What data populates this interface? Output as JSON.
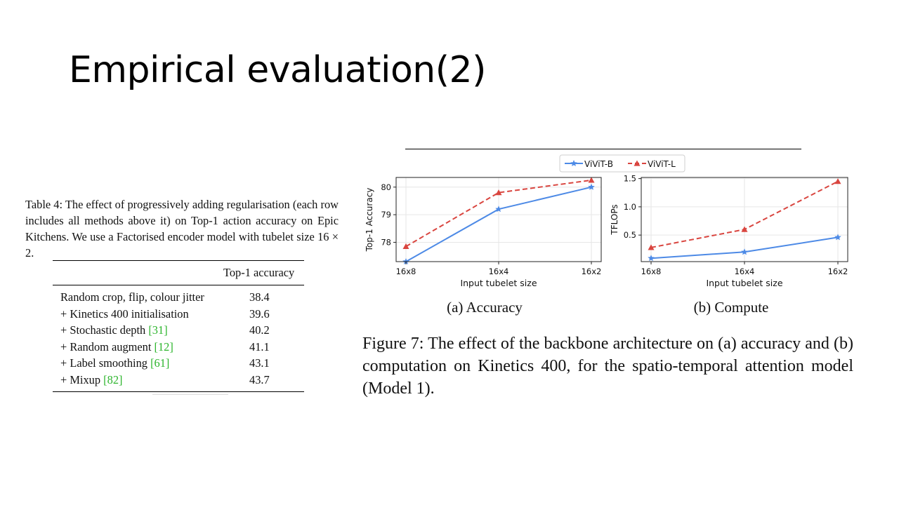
{
  "slide": {
    "title": "Empirical evaluation(2)"
  },
  "table4": {
    "caption_prefix": "Table 4: The effect of progressively adding regularisation (each row includes all methods above it) on Top-1 action accuracy on Epic Kitchens. We use a Factorised encoder model with tubelet size ",
    "caption_size": "16 × 2",
    "caption_end": ".",
    "column_header": "Top-1 accuracy",
    "rows": [
      {
        "method": "Random crop, flip, colour jitter",
        "cite": "",
        "value": "38.4"
      },
      {
        "method": "+ Kinetics 400 initialisation",
        "cite": "",
        "value": "39.6"
      },
      {
        "method": "+ Stochastic depth",
        "cite": "[31]",
        "value": "40.2"
      },
      {
        "method": "+ Random augment",
        "cite": "[12]",
        "value": "41.1"
      },
      {
        "method": "+ Label smoothing",
        "cite": "[61]",
        "value": "43.1"
      },
      {
        "method": "+ Mixup",
        "cite": "[82]",
        "value": "43.7"
      }
    ]
  },
  "figure7": {
    "legend": [
      {
        "name": "ViViT-B",
        "color": "#4d8ae6",
        "marker": "star-icon",
        "dash": "solid"
      },
      {
        "name": "ViViT-L",
        "color": "#d9453f",
        "marker": "triangle-icon",
        "dash": "dashed"
      }
    ],
    "caption": "Figure 7: The effect of the backbone architecture on (a) accuracy and (b) computation on Kinetics 400, for the spatio-temporal attention model (Model 1)."
  },
  "chart_data": [
    {
      "type": "line",
      "subtitle": "(a) Accuracy",
      "xlabel": "Input tubelet size",
      "ylabel": "Top-1 Accuracy",
      "categories": [
        "16x8",
        "16x4",
        "16x2"
      ],
      "yticks": [
        "78",
        "79",
        "80"
      ],
      "ylim": [
        77.3,
        80.35
      ],
      "grid": true,
      "legend": "top-center",
      "series": [
        {
          "name": "ViViT-B",
          "values": [
            77.3,
            79.2,
            80.0
          ]
        },
        {
          "name": "ViViT-L",
          "values": [
            77.85,
            79.8,
            80.25
          ]
        }
      ]
    },
    {
      "type": "line",
      "subtitle": "(b) Compute",
      "xlabel": "Input tubelet size",
      "ylabel": "TFLOPs",
      "categories": [
        "16x8",
        "16x4",
        "16x2"
      ],
      "yticks": [
        "0.5",
        "1.0",
        "1.5"
      ],
      "ylim": [
        0.03,
        1.52
      ],
      "grid": true,
      "legend": "top-center",
      "series": [
        {
          "name": "ViViT-B",
          "values": [
            0.09,
            0.2,
            0.46
          ]
        },
        {
          "name": "ViViT-L",
          "values": [
            0.28,
            0.6,
            1.45
          ]
        }
      ]
    }
  ]
}
